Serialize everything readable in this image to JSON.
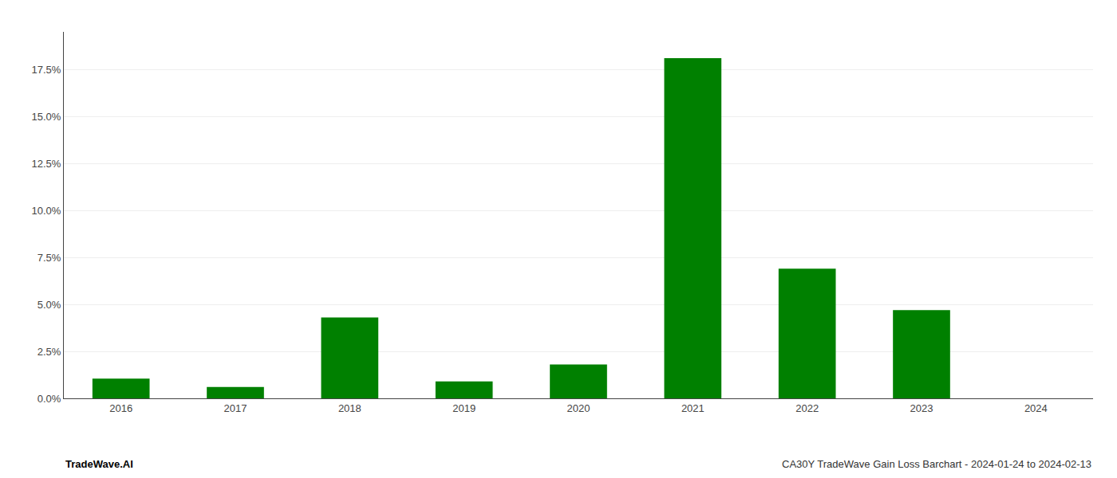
{
  "chart_data": {
    "type": "bar",
    "categories": [
      "2016",
      "2017",
      "2018",
      "2019",
      "2020",
      "2021",
      "2022",
      "2023",
      "2024"
    ],
    "values": [
      0.0105,
      0.006,
      0.043,
      0.009,
      0.018,
      0.181,
      0.069,
      0.047,
      0.0
    ],
    "color": "#008000",
    "ylim": [
      0,
      0.195
    ],
    "yticks": [
      {
        "value": 0.0,
        "label": "0.0%"
      },
      {
        "value": 0.025,
        "label": "2.5%"
      },
      {
        "value": 0.05,
        "label": "5.0%"
      },
      {
        "value": 0.075,
        "label": "7.5%"
      },
      {
        "value": 0.1,
        "label": "10.0%"
      },
      {
        "value": 0.125,
        "label": "12.5%"
      },
      {
        "value": 0.15,
        "label": "15.0%"
      },
      {
        "value": 0.175,
        "label": "17.5%"
      }
    ],
    "grid": true,
    "annotations": [
      {
        "text": "TradeWave.AI"
      },
      {
        "text": "CA30Y TradeWave Gain Loss Barchart - 2024-01-24 to 2024-02-13"
      }
    ]
  }
}
